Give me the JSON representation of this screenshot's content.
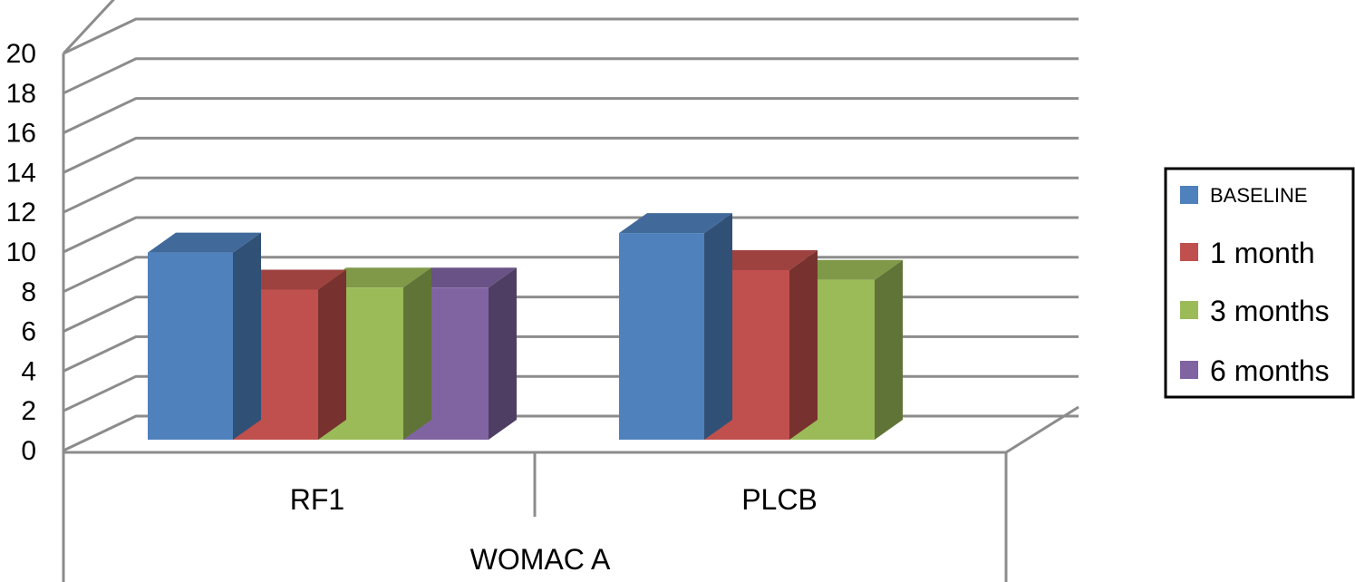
{
  "chart_data": {
    "type": "bar",
    "title": "",
    "xlabel": "",
    "ylabel": "",
    "ylim": [
      0,
      20
    ],
    "yticks": [
      "0",
      "2",
      "4",
      "6",
      "8",
      "10",
      "12",
      "14",
      "16",
      "18",
      "20"
    ],
    "categories": [
      "RF1",
      "PLCB"
    ],
    "group_label": "WOMAC A",
    "grid": true,
    "legend_position": "right",
    "series": [
      {
        "name": "BASELINE",
        "color": "#4f81bd",
        "values": [
          9.6,
          10.6
        ]
      },
      {
        "name": "1 month",
        "color": "#c0504d",
        "values": [
          7.7,
          8.7
        ]
      },
      {
        "name": "3 months",
        "color": "#9bbb59",
        "values": [
          7.8,
          8.2
        ]
      },
      {
        "name": "6 months",
        "color": "#8064a2",
        "values": [
          7.8,
          null
        ]
      }
    ]
  }
}
